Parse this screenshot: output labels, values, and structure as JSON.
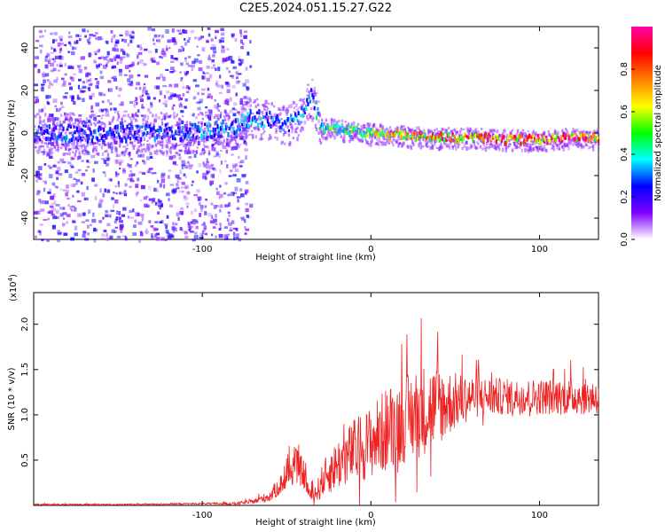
{
  "page": {
    "title": "C2E5.2024.051.15.27.G22"
  },
  "colors": {
    "snr_line": "#ee2222",
    "axis": "#000000",
    "colormap": [
      "#ffffff",
      "#7f00ff",
      "#0000ff",
      "#00ffff",
      "#00ff00",
      "#ffff00",
      "#ff8000",
      "#ff0000",
      "#ff00aa"
    ]
  },
  "chart_data": [
    {
      "type": "heatmap",
      "title": "C2E5.2024.051.15.27.G22",
      "xlabel": "Height of straight line (km)",
      "ylabel": "Frequency (Hz)",
      "xlim": [
        -200,
        135
      ],
      "ylim": [
        -50,
        50
      ],
      "x_ticks": [
        "-100",
        "0",
        "100"
      ],
      "x_tick_values": [
        -100,
        0,
        100
      ],
      "y_ticks": [
        "40",
        "20",
        "0",
        "-20",
        "-40"
      ],
      "y_tick_values": [
        40,
        20,
        0,
        -20,
        -40
      ],
      "colorbar": {
        "label": "Normalized spectral amplitude",
        "range": [
          0,
          1
        ],
        "ticks": [
          "0.0",
          "0.2",
          "0.4",
          "0.6",
          "0.8"
        ],
        "tick_values": [
          0.0,
          0.2,
          0.4,
          0.6,
          0.8
        ]
      },
      "signal_track": {
        "x": [
          -200,
          -150,
          -100,
          -80,
          -70,
          -60,
          -50,
          -40,
          -36,
          -30,
          -20,
          0,
          20,
          40,
          60,
          80,
          100,
          120,
          135
        ],
        "freq_hz": [
          0,
          0,
          1,
          3,
          8,
          6,
          4,
          10,
          18,
          3,
          2,
          0,
          -1,
          -2,
          -2,
          -3,
          -3,
          -2,
          -2
        ],
        "amplitude": [
          0.25,
          0.25,
          0.3,
          0.3,
          0.3,
          0.3,
          0.3,
          0.35,
          0.3,
          0.45,
          0.5,
          0.55,
          0.65,
          0.7,
          0.75,
          0.8,
          0.8,
          0.8,
          0.75
        ]
      },
      "noise_region_xlim": [
        -200,
        -72
      ]
    },
    {
      "type": "line",
      "xlabel": "Height of straight line (km)",
      "ylabel": "SNR (10 * v/v)",
      "y_exponent_label": "(x10",
      "y_exponent_power": "4",
      "xlim": [
        -200,
        135
      ],
      "ylim": [
        0,
        2.35
      ],
      "x_ticks": [
        "-100",
        "0",
        "100"
      ],
      "x_tick_values": [
        -100,
        0,
        100
      ],
      "y_ticks": [
        "0.5",
        "1.0",
        "1.5",
        "2.0"
      ],
      "y_tick_values": [
        0.5,
        1.0,
        1.5,
        2.0
      ],
      "series": [
        {
          "x": [
            -200,
            -150,
            -100,
            -80,
            -70,
            -60,
            -50,
            -45,
            -40,
            -36,
            -32,
            -28,
            -20,
            -10,
            0,
            10,
            20,
            30,
            40,
            50,
            60,
            80,
            100,
            120,
            135
          ],
          "mean": [
            0.01,
            0.01,
            0.02,
            0.02,
            0.04,
            0.1,
            0.3,
            0.45,
            0.35,
            0.1,
            0.15,
            0.3,
            0.45,
            0.6,
            0.7,
            0.85,
            0.95,
            1.05,
            1.1,
            1.15,
            1.2,
            1.2,
            1.2,
            1.2,
            1.2
          ],
          "spread": [
            0.01,
            0.01,
            0.01,
            0.02,
            0.03,
            0.08,
            0.18,
            0.25,
            0.2,
            0.08,
            0.15,
            0.25,
            0.35,
            0.45,
            0.5,
            0.6,
            0.6,
            0.65,
            0.55,
            0.4,
            0.3,
            0.25,
            0.25,
            0.25,
            0.25
          ]
        }
      ]
    }
  ]
}
